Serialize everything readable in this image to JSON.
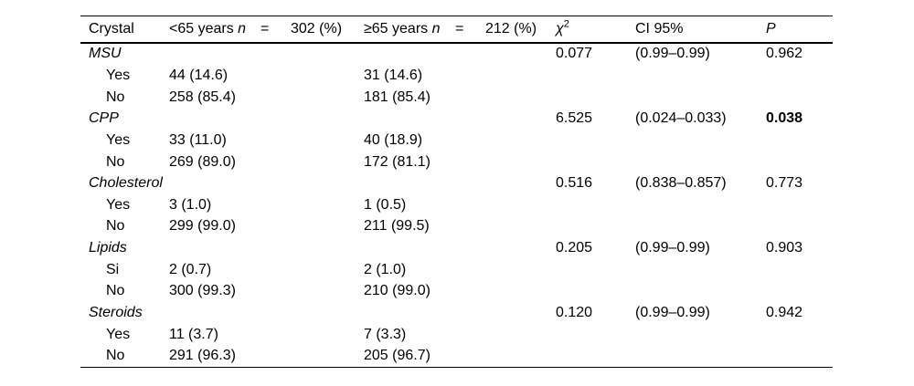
{
  "page": {
    "background_color": "#ffffff",
    "text_color": "#000000",
    "rule_color": "#000000"
  },
  "table": {
    "header": {
      "crystal": "Crystal",
      "group1": {
        "label": "<65 years",
        "n": "n",
        "eq": "=",
        "count": "302 (%)"
      },
      "group2": {
        "label": "≥65 years",
        "n": "n",
        "eq": "=",
        "count": "212 (%)"
      },
      "chi": "χ",
      "chi_sup": "2",
      "ci": "CI 95%",
      "p": "P"
    },
    "rows": [
      {
        "type": "group",
        "label": "MSU",
        "chi2": "0.077",
        "ci": "(0.99–0.99)",
        "p": "0.962"
      },
      {
        "type": "sub",
        "label": "Yes",
        "v1": "44 (14.6)",
        "v2": "31 (14.6)"
      },
      {
        "type": "sub",
        "label": "No",
        "v1": "258 (85.4)",
        "v2": "181 (85.4)"
      },
      {
        "type": "group",
        "label": "CPP",
        "chi2": "6.525",
        "ci": "(0.024–0.033)",
        "p": "0.038",
        "p_bold": true
      },
      {
        "type": "sub",
        "label": "Yes",
        "v1": "33 (11.0)",
        "v2": "40 (18.9)"
      },
      {
        "type": "sub",
        "label": "No",
        "v1": "269 (89.0)",
        "v2": "172 (81.1)"
      },
      {
        "type": "group",
        "label": "Cholesterol",
        "chi2": "0.516",
        "ci": "(0.838–0.857)",
        "p": "0.773"
      },
      {
        "type": "sub",
        "label": "Yes",
        "v1": "3 (1.0)",
        "v2": "1 (0.5)"
      },
      {
        "type": "sub",
        "label": "No",
        "v1": "299 (99.0)",
        "v2": "211 (99.5)"
      },
      {
        "type": "group",
        "label": "Lipids",
        "chi2": "0.205",
        "ci": "(0.99–0.99)",
        "p": "0.903"
      },
      {
        "type": "sub",
        "label": "Si",
        "v1": "2 (0.7)",
        "v2": "2 (1.0)"
      },
      {
        "type": "sub",
        "label": "No",
        "v1": "300 (99.3)",
        "v2": "210 (99.0)"
      },
      {
        "type": "group",
        "label": "Steroids",
        "chi2": "0.120",
        "ci": "(0.99–0.99)",
        "p": "0.942"
      },
      {
        "type": "sub",
        "label": "Yes",
        "v1": "11 (3.7)",
        "v2": "7 (3.3)"
      },
      {
        "type": "sub",
        "label": "No",
        "v1": "291 (96.3)",
        "v2": "205 (96.7)"
      }
    ]
  }
}
